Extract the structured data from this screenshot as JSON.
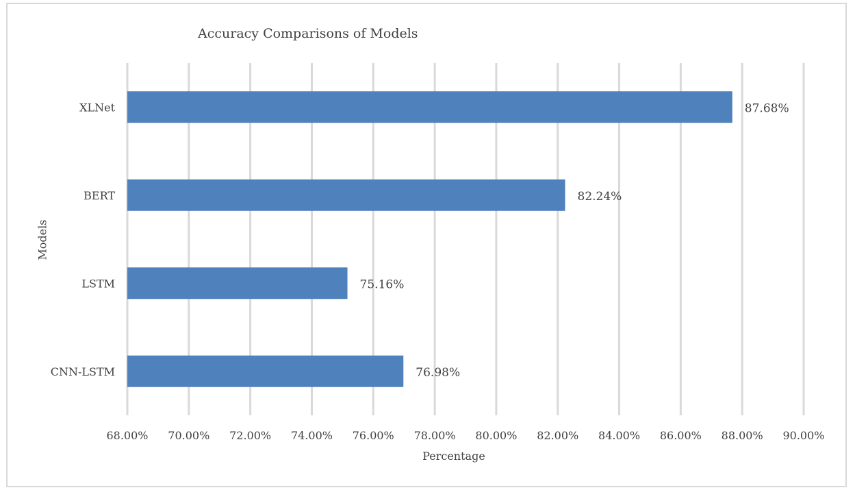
{
  "chart_data": {
    "type": "bar",
    "orientation": "horizontal",
    "title": "Accuracy Comparisons of Models",
    "xlabel": "Percentage",
    "ylabel": "Models",
    "categories": [
      "XLNet",
      "BERT",
      "LSTM",
      "CNN-LSTM"
    ],
    "values": [
      87.68,
      82.24,
      75.16,
      76.98
    ],
    "data_labels": [
      "87.68%",
      "82.24%",
      "75.16%",
      "76.98%"
    ],
    "xlim": [
      68,
      90
    ],
    "xticks": [
      68,
      70,
      72,
      74,
      76,
      78,
      80,
      82,
      84,
      86,
      88,
      90
    ],
    "xtick_labels": [
      "68.00%",
      "70.00%",
      "72.00%",
      "74.00%",
      "76.00%",
      "78.00%",
      "80.00%",
      "82.00%",
      "84.00%",
      "86.00%",
      "88.00%",
      "90.00%"
    ],
    "grid": "vertical",
    "legend": "none",
    "bar_color": "#4f81bd",
    "grid_color": "#d9d9d9",
    "text_color": "#404040"
  }
}
